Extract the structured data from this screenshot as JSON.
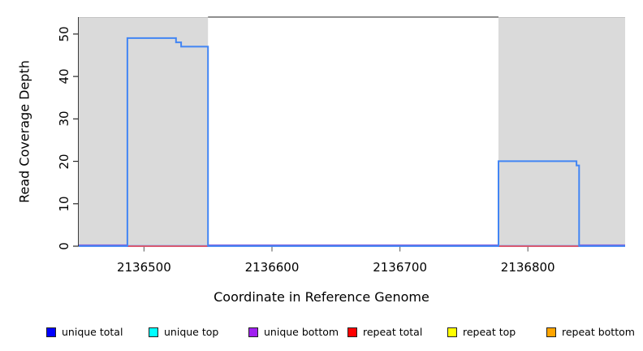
{
  "chart_data": {
    "type": "line",
    "title": "",
    "xlabel": "Coordinate in Reference Genome",
    "ylabel": "Read Coverage Depth",
    "xlim": [
      2136449,
      2136876
    ],
    "ylim": [
      0,
      54
    ],
    "x_ticks": [
      2136500,
      2136600,
      2136700,
      2136800
    ],
    "x_tick_labels": [
      "2136500",
      "2136600",
      "2136700",
      "2136800"
    ],
    "y_ticks": [
      0,
      10,
      20,
      30,
      40,
      50
    ],
    "y_tick_labels": [
      "0",
      "10",
      "20",
      "30",
      "40",
      "50"
    ],
    "grid": false,
    "background_color": "#ffffff",
    "shaded_region_color": "#dadada",
    "shaded_regions": [
      {
        "from": 2136449,
        "to": 2136550
      },
      {
        "from": 2136777,
        "to": 2136876
      }
    ],
    "gap_top_edge_line": {
      "from": 2136550,
      "to": 2136777,
      "y": 54,
      "color": "#8f8f8f"
    },
    "series": [
      {
        "name": "unique total",
        "color": "#0000FF",
        "points": [
          [
            2136449,
            0
          ],
          [
            2136487,
            0
          ],
          [
            2136487,
            49
          ],
          [
            2136525,
            49
          ],
          [
            2136525,
            48
          ],
          [
            2136529,
            48
          ],
          [
            2136529,
            47
          ],
          [
            2136550,
            47
          ],
          [
            2136550,
            0
          ],
          [
            2136777,
            0
          ],
          [
            2136777,
            20
          ],
          [
            2136838,
            20
          ],
          [
            2136838,
            19
          ],
          [
            2136840,
            19
          ],
          [
            2136840,
            0
          ],
          [
            2136876,
            0
          ]
        ]
      },
      {
        "name": "unique top",
        "color": "#00FFFF",
        "points": [
          [
            2136449,
            0
          ],
          [
            2136876,
            0
          ]
        ]
      },
      {
        "name": "unique bottom",
        "color": "#A020F0",
        "points": [
          [
            2136449,
            0
          ],
          [
            2136876,
            0
          ]
        ]
      },
      {
        "name": "repeat total",
        "color": "#FF0000",
        "points": [
          [
            2136449,
            0
          ],
          [
            2136876,
            0
          ]
        ]
      },
      {
        "name": "repeat top",
        "color": "#FFFF00",
        "points": [
          [
            2136449,
            0
          ],
          [
            2136876,
            0
          ]
        ]
      },
      {
        "name": "repeat bottom",
        "color": "#FFA500",
        "points": [
          [
            2136449,
            0
          ],
          [
            2136876,
            0
          ]
        ]
      }
    ],
    "rendered_lines": [
      {
        "name": "unique-top-line",
        "color": "#00FFFF",
        "width": 1,
        "dy": 0,
        "segments": [
          [
            2136449,
            2136876
          ]
        ],
        "value": 0
      },
      {
        "name": "repeat-top-line",
        "color": "#FFFF00",
        "width": 1,
        "dy": 0,
        "segments": [
          [
            2136449,
            2136876
          ]
        ],
        "value": 0
      },
      {
        "name": "repeat-bottom-line",
        "color": "#FFA500",
        "width": 1,
        "dy": 0,
        "segments": [
          [
            2136449,
            2136876
          ]
        ],
        "value": 0
      },
      {
        "name": "baseline-blue-line",
        "color": "#4b78e6",
        "width": 2,
        "dy": 0,
        "segments": [
          [
            2136449,
            2136876
          ]
        ],
        "value": 0
      },
      {
        "name": "repeat-total-line",
        "color": "#e65060",
        "width": 1.8,
        "dy": 0.2,
        "segments": [
          [
            2136487,
            2136550
          ],
          [
            2136777,
            2136840
          ]
        ],
        "value": 0
      },
      {
        "name": "unique-bottom-line",
        "color": "#8a55d6",
        "width": 1.4,
        "dy": -1.2,
        "segments": [
          [
            2136449,
            2136487
          ],
          [
            2136550,
            2136777
          ],
          [
            2136840,
            2136876
          ]
        ],
        "value": 0
      }
    ],
    "step_line_color": "#4285f4",
    "legend": {
      "position": "bottom",
      "entries": [
        {
          "label": "unique total",
          "color": "#0000FF"
        },
        {
          "label": "unique top",
          "color": "#00FFFF"
        },
        {
          "label": "unique bottom",
          "color": "#A020F0"
        },
        {
          "label": "repeat total",
          "color": "#FF0000"
        },
        {
          "label": "repeat top",
          "color": "#FFFF00"
        },
        {
          "label": "repeat bottom",
          "color": "#FFA500"
        }
      ]
    }
  }
}
